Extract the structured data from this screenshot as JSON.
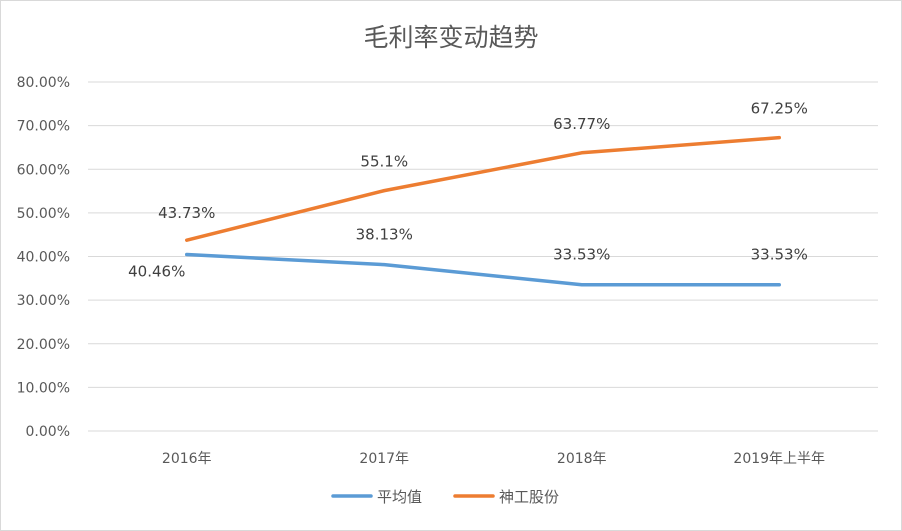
{
  "chart_data": {
    "type": "line",
    "title": "毛利率变动趋势",
    "categories": [
      "2016年",
      "2017年",
      "2018年",
      "2019年上半年"
    ],
    "y_ticks": [
      "0.00%",
      "10.00%",
      "20.00%",
      "30.00%",
      "40.00%",
      "50.00%",
      "60.00%",
      "70.00%",
      "80.00%"
    ],
    "ylim": [
      0,
      80
    ],
    "grid": true,
    "legend_position": "bottom",
    "series": [
      {
        "name": "平均值",
        "color": "#5b9bd5",
        "values": [
          40.46,
          38.13,
          33.53,
          33.53
        ],
        "labels": [
          "40.46%",
          "38.13%",
          "33.53%",
          "33.53%"
        ]
      },
      {
        "name": "神工股份",
        "color": "#ed7d31",
        "values": [
          43.73,
          55.1,
          63.77,
          67.25
        ],
        "labels": [
          "43.73%",
          "55.1%",
          "63.77%",
          "67.25%"
        ]
      }
    ]
  }
}
